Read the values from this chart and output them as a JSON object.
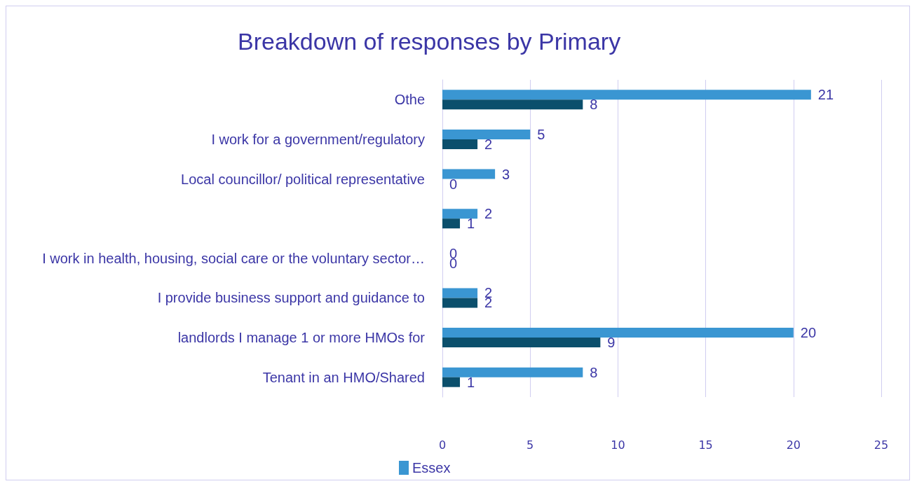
{
  "chart_data": {
    "type": "bar",
    "orientation": "horizontal",
    "title": "Breakdown of responses by Primary",
    "categories": [
      "Othe",
      "I work for a government/regulatory",
      "Local councillor/ political representative",
      null,
      "I work in health, housing, social care or the voluntary sector…",
      "I provide business support and guidance to",
      "landlords I manage 1 or more HMOs for",
      "Tenant in an HMO/Shared"
    ],
    "series": [
      {
        "name": "Essex",
        "color": "#3a96d2",
        "values": [
          21,
          5,
          3,
          2,
          0,
          2,
          20,
          8
        ]
      },
      {
        "color": "#0b4f6c",
        "values": [
          8,
          2,
          0,
          1,
          0,
          2,
          9,
          1
        ]
      }
    ],
    "xlim": [
      0,
      25
    ],
    "xticks": [
      0,
      5,
      10,
      15,
      20,
      25
    ],
    "grid": "x",
    "data_labels": true,
    "legend": "bottom"
  }
}
